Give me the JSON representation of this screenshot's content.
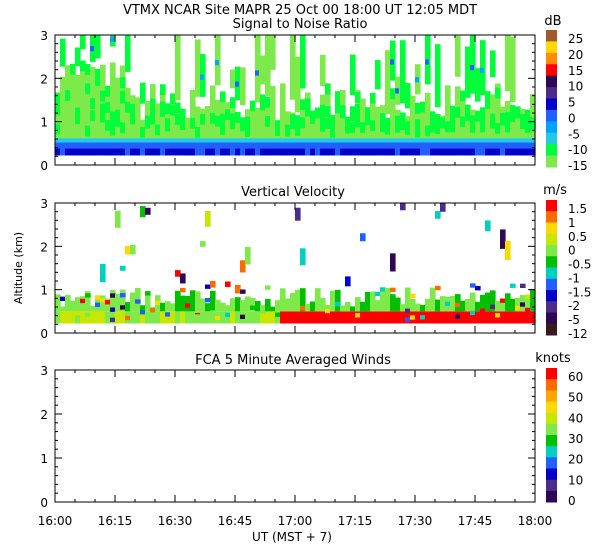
{
  "header": {
    "title": "VTMX  NCAR Site  MAPR 25 Oct 00  18:00 UT  12:05  MDT"
  },
  "x_axis": {
    "label": "UT  (MST + 7)",
    "ticks": [
      "16:00",
      "16:15",
      "16:30",
      "16:45",
      "17:00",
      "17:15",
      "17:30",
      "17:45",
      "18:00"
    ]
  },
  "y_axis_label": "Altitude (km)",
  "chart_data": [
    {
      "type": "heatmap",
      "title": "Signal to Noise Ratio",
      "units": "dB",
      "x_range": [
        "16:00",
        "18:00"
      ],
      "ylim": [
        0,
        3
      ],
      "y_ticks": [
        "0",
        "1",
        "2",
        "3"
      ],
      "colorbar": {
        "labels": [
          "25",
          "20",
          "15",
          "10",
          "5",
          "0",
          "-5",
          "-10",
          "-15"
        ],
        "colors": [
          "#a05a2c",
          "#ffd800",
          "#ff8c00",
          "#ff0000",
          "#2e0854",
          "#4b2c8a",
          "#0000cd",
          "#1f60ff",
          "#00a2ff",
          "#22c8e6",
          "#00ff3a",
          "#7ee94a"
        ]
      },
      "description": "Low-level dark blue/blue band near 0.3-0.5 km, cyan above, green to light green fill up to ~1.8 km with scattered green streaks to 3 km"
    },
    {
      "type": "heatmap",
      "title": "Vertical Velocity",
      "units": "m/s",
      "x_range": [
        "16:00",
        "18:00"
      ],
      "ylim": [
        0,
        3
      ],
      "y_ticks": [
        "0",
        "1",
        "2",
        "3"
      ],
      "colorbar": {
        "labels": [
          "1.5",
          "1",
          "0.5",
          "0",
          "-0.5",
          "-1",
          "-1.5",
          "-2",
          "-5",
          "-12"
        ],
        "colors": [
          "#ff0000",
          "#ff6a00",
          "#ffd800",
          "#c8e600",
          "#7ee94a",
          "#00c000",
          "#00d0c0",
          "#1f60ff",
          "#0000cd",
          "#4b2c8a",
          "#2e0854",
          "#3a1a1a"
        ]
      },
      "description": "Green field below ~1 km; strong red (upward) layer near 0.3-0.6 km after 16:55; scattered multicolour cells up to 3 km"
    },
    {
      "type": "heatmap",
      "title": "FCA 5 Minute Averaged Winds",
      "units": "knots",
      "x_range": [
        "16:00",
        "18:00"
      ],
      "ylim": [
        0,
        3
      ],
      "y_ticks": [
        "0",
        "1",
        "2",
        "3"
      ],
      "colorbar": {
        "labels": [
          "60",
          "50",
          "40",
          "30",
          "20",
          "10",
          "0"
        ],
        "colors": [
          "#ff0000",
          "#ff6a00",
          "#ffa500",
          "#ffd800",
          "#c8e600",
          "#7ee94a",
          "#00c000",
          "#00d0c0",
          "#1f60ff",
          "#0000cd",
          "#4b2c8a",
          "#2e0854"
        ]
      },
      "description": "No wind data plotted"
    }
  ]
}
